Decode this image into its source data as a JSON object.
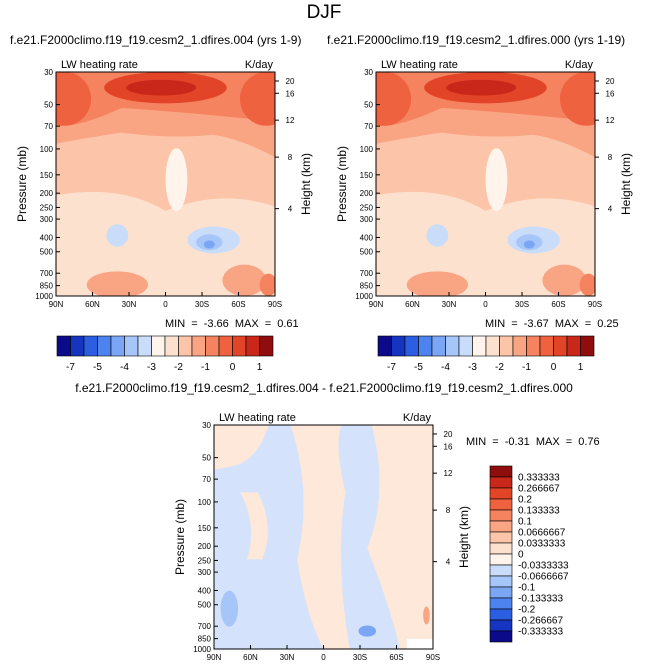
{
  "title": "DJF",
  "panels": [
    {
      "id": "p1",
      "title": "f.e21.F2000climo.f19_f19.cesm2_1.dfires.004 (yrs 1-9)",
      "left_label": "LW heating rate",
      "right_label": "K/day",
      "ylabel": "Pressure (mb)",
      "y2label": "Height (km)",
      "stats": "MIN = -3.66 MAX = 0.61"
    },
    {
      "id": "p2",
      "title": "f.e21.F2000climo.f19_f19.cesm2_1.dfires.000 (yrs 1-19)",
      "left_label": "LW heating rate",
      "right_label": "K/day",
      "ylabel": "Pressure (mb)",
      "y2label": "Height (km)",
      "stats": "MIN = -3.67 MAX = 0.25"
    },
    {
      "id": "p3",
      "title": "f.e21.F2000climo.f19_f19.cesm2_1.dfires.004 - f.e21.F2000climo.f19_f19.cesm2_1.dfires.000",
      "left_label": "LW heating rate",
      "right_label": "K/day",
      "ylabel": "Pressure (mb)",
      "y2label": "Height (km)",
      "stats": "MIN = -0.31 MAX = 0.76"
    }
  ],
  "chart_data": {
    "type": "heatmap",
    "x_ticks": [
      "90N",
      "60N",
      "30N",
      "0",
      "30S",
      "60S",
      "90S"
    ],
    "y_ticks": [
      "30",
      "50",
      "70",
      "100",
      "150",
      "200",
      "250",
      "300",
      "400",
      "500",
      "700",
      "850",
      "1000"
    ],
    "y_scale": "log",
    "ylim": [
      30,
      1000
    ],
    "height_ticks": [
      "20",
      "16",
      "12",
      "8",
      "4"
    ],
    "colorbar_top": {
      "labels": [
        "-7",
        "-5",
        "-4",
        "-3",
        "-2",
        "-1",
        "0",
        "1"
      ],
      "colors": [
        "#0b0b8a",
        "#1535c0",
        "#2b5ee0",
        "#4d83ef",
        "#7aa6f5",
        "#a6c5f8",
        "#c9dcfa",
        "#fef4ec",
        "#fde1cf",
        "#fcc4a8",
        "#f9a483",
        "#f5835f",
        "#ee6240",
        "#e24428",
        "#c9271a",
        "#8f0d0d"
      ]
    },
    "colorbar_diff": {
      "labels": [
        "0.333333",
        "0.266667",
        "0.2",
        "0.133333",
        "0.1",
        "0.0666667",
        "0.0333333",
        "0",
        "-0.0333333",
        "-0.0666667",
        "-0.1",
        "-0.133333",
        "-0.2",
        "-0.266667",
        "-0.333333"
      ],
      "colors": [
        "#8f0d0d",
        "#c9271a",
        "#e24428",
        "#ee6240",
        "#f5835f",
        "#f9a483",
        "#fcc4a8",
        "#fde1cf",
        "#fef4ec",
        "#c9dcfa",
        "#a6c5f8",
        "#7aa6f5",
        "#4d83ef",
        "#2b5ee0",
        "#1535c0",
        "#0b0b8a"
      ]
    }
  }
}
